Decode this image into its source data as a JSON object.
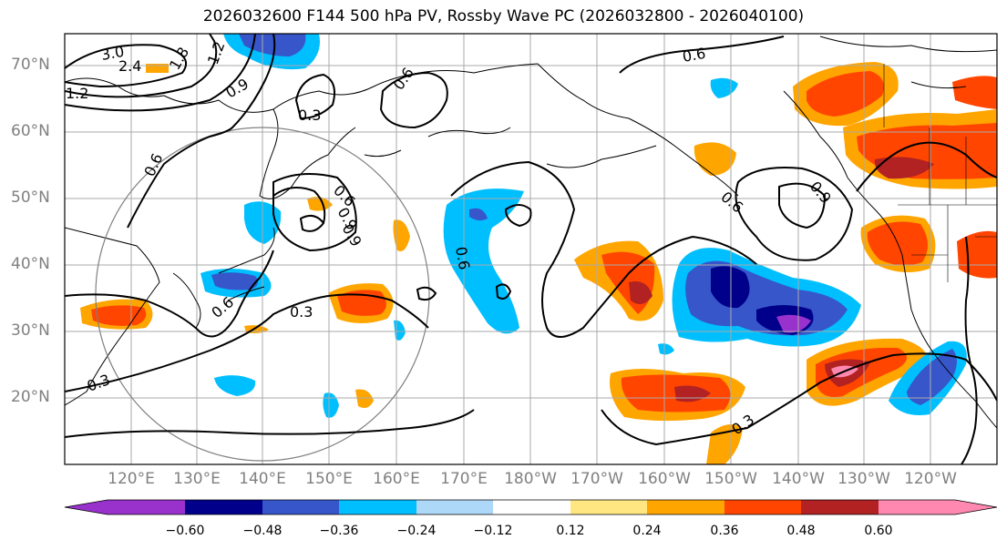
{
  "title": "2026032600 F144 500 hPa PV, Rossby Wave PC (2026032800 - 2026040100)",
  "lat_labels": [
    "70°N",
    "60°N",
    "50°N",
    "40°N",
    "30°N",
    "20°N"
  ],
  "lon_labels": [
    "120°E",
    "130°E",
    "140°E",
    "150°E",
    "160°E",
    "170°E",
    "180°W",
    "170°W",
    "160°W",
    "150°W",
    "140°W",
    "130°W",
    "120°W"
  ],
  "colorbar": {
    "ticks": [
      "−0.60",
      "−0.48",
      "−0.36",
      "−0.24",
      "−0.12",
      "0.12",
      "0.24",
      "0.36",
      "0.48",
      "0.60"
    ],
    "colors": [
      "#9932cc",
      "#00008b",
      "#3656c9",
      "#00bfff",
      "#add8f7",
      "#ffffff",
      "#ffe680",
      "#ffa500",
      "#ff4500",
      "#b22222",
      "#ff88b0"
    ]
  },
  "contour_labels": [
    "3.0",
    "2.4",
    "1.8",
    "1.2",
    "1.2",
    "0.9",
    "0.3",
    "0.6",
    "0.6",
    "0.6",
    "0.6",
    "0.9",
    "0.6",
    "0.9",
    "0.9",
    "0.6",
    "0.6",
    "0.3",
    "0.3",
    "0.3"
  ]
}
